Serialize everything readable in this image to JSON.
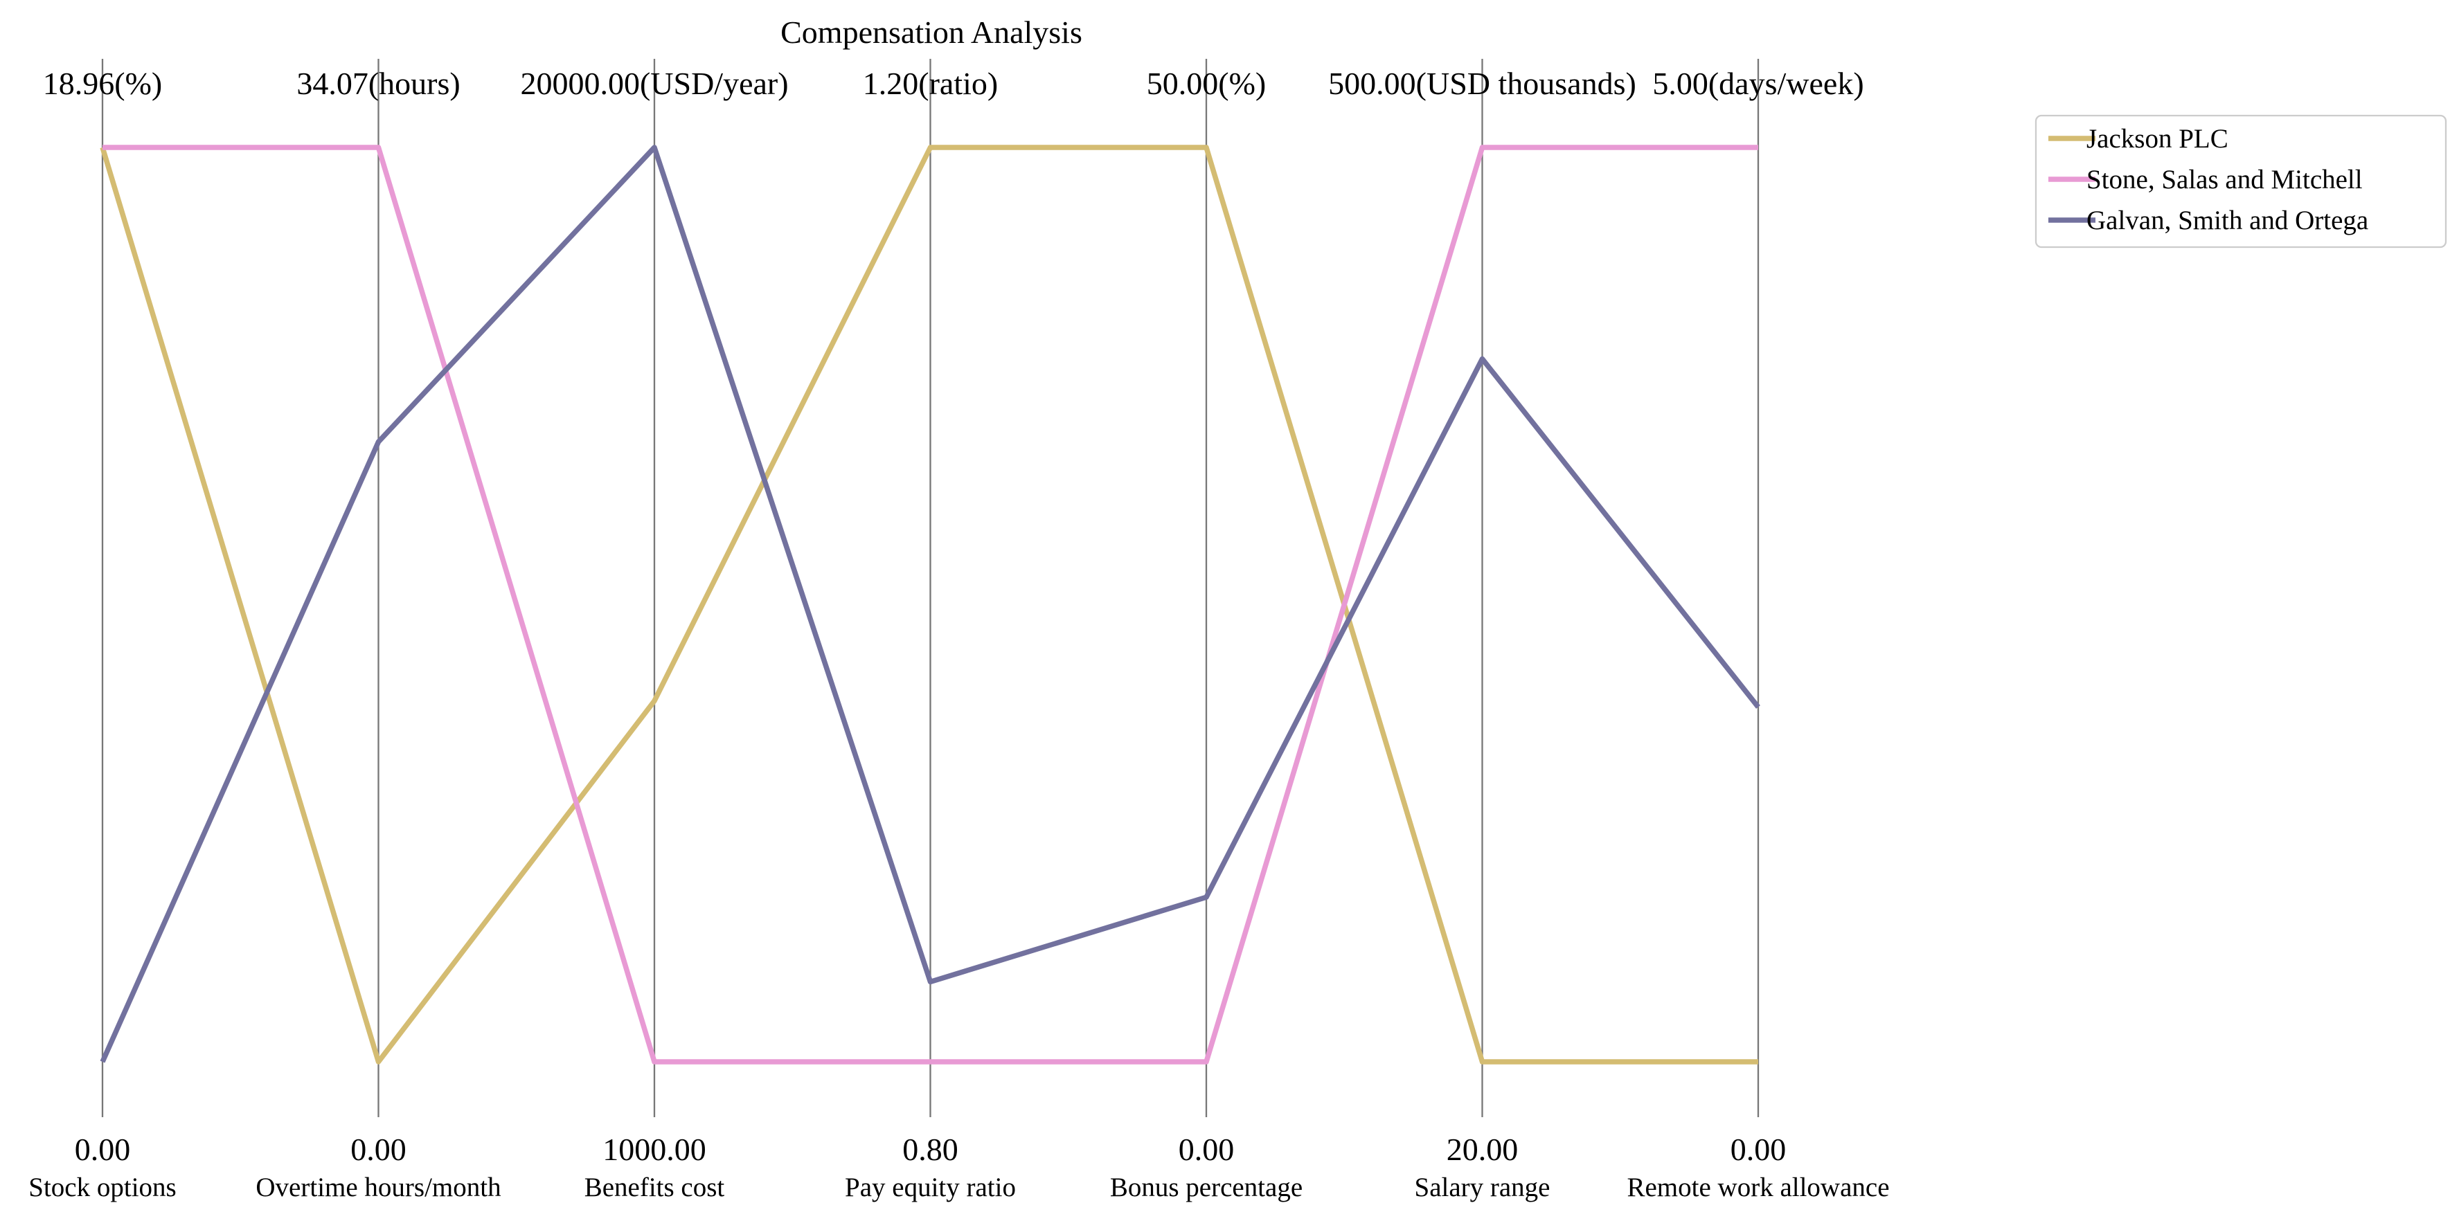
{
  "chart_data": {
    "type": "parallel-coordinates",
    "title": "Compensation Analysis",
    "axes": [
      {
        "label": "Stock options",
        "min": 0.0,
        "max": 18.96,
        "min_label": "0.00",
        "max_label": "18.96(%)"
      },
      {
        "label": "Overtime hours/month",
        "min": 0.0,
        "max": 34.07,
        "min_label": "0.00",
        "max_label": "34.07(hours)"
      },
      {
        "label": "Benefits cost",
        "min": 1000.0,
        "max": 20000.0,
        "min_label": "1000.00",
        "max_label": "20000.00(USD/year)"
      },
      {
        "label": "Pay equity ratio",
        "min": 0.8,
        "max": 1.2,
        "min_label": "0.80",
        "max_label": "1.20(ratio)"
      },
      {
        "label": "Bonus percentage",
        "min": 0.0,
        "max": 50.0,
        "min_label": "0.00",
        "max_label": "50.00(%)"
      },
      {
        "label": "Salary range",
        "min": 20.0,
        "max": 500.0,
        "min_label": "20.00",
        "max_label": "500.00(USD thousands)"
      },
      {
        "label": "Remote work allowance",
        "min": 0.0,
        "max": 5.0,
        "min_label": "0.00",
        "max_label": "5.00(days/week)"
      }
    ],
    "series": [
      {
        "name": "Jackson PLC",
        "color": "#d4bc72",
        "values": [
          18.96,
          0.0,
          8500.0,
          1.2,
          50.0,
          20.0,
          0.0
        ]
      },
      {
        "name": "Stone, Salas and Mitchell",
        "color": "#e89ad4",
        "values": [
          18.96,
          34.07,
          1000.0,
          0.8,
          0.0,
          500.0,
          5.0
        ]
      },
      {
        "name": "Galvan, Smith and Ortega",
        "color": "#72719e",
        "values": [
          0.0,
          23.1,
          20000.0,
          0.835,
          9.0,
          389.0,
          1.94
        ]
      }
    ],
    "legend_position": "upper-right-outside",
    "grid": false
  }
}
